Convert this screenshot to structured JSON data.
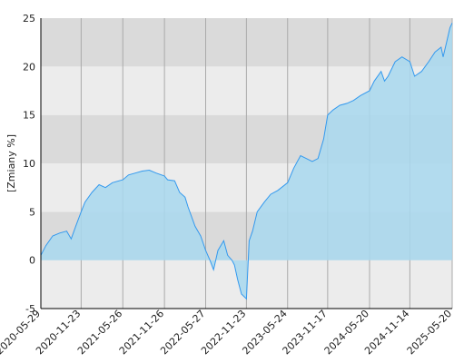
{
  "chart_data": {
    "type": "area",
    "title": "",
    "xlabel": "",
    "ylabel": "[Zmiany %]",
    "ylim": [
      -5,
      25
    ],
    "yticks": [
      -5,
      0,
      5,
      10,
      15,
      20,
      25
    ],
    "xlim": [
      "2020-05-29",
      "2025-05-20"
    ],
    "xticks": [
      "2020-05-29",
      "2020-11-23",
      "2021-05-26",
      "2021-11-26",
      "2022-05-27",
      "2022-11-23",
      "2023-05-24",
      "2023-11-17",
      "2024-05-20",
      "2024-11-14",
      "2025-05-20"
    ],
    "grid": true,
    "legend": "none",
    "colors": {
      "line": "#3399ee",
      "fill": "#a8d8ee",
      "band_dark": "#dadada",
      "band_light": "#ececec",
      "grid": "#aaaaaa",
      "axis": "#000000"
    },
    "series": [
      {
        "x": [
          "2020-05-29",
          "2020-06-20",
          "2020-07-20",
          "2020-08-20",
          "2020-09-20",
          "2020-10-10",
          "2020-10-30",
          "2020-11-23",
          "2020-12-10",
          "2021-01-10",
          "2021-02-10",
          "2021-03-10",
          "2021-04-10",
          "2021-05-26",
          "2021-06-20",
          "2021-07-20",
          "2021-08-20",
          "2021-09-20",
          "2021-10-20",
          "2021-11-26",
          "2021-12-10",
          "2022-01-10",
          "2022-02-01",
          "2022-02-25",
          "2022-03-10",
          "2022-04-10",
          "2022-05-05",
          "2022-05-27",
          "2022-06-15",
          "2022-07-01",
          "2022-07-20",
          "2022-08-15",
          "2022-09-01",
          "2022-09-20",
          "2022-10-01",
          "2022-10-15",
          "2022-11-01",
          "2022-11-23",
          "2022-12-05",
          "2022-12-20",
          "2023-01-10",
          "2023-02-10",
          "2023-03-10",
          "2023-04-10",
          "2023-05-24",
          "2023-06-20",
          "2023-07-20",
          "2023-08-15",
          "2023-09-10",
          "2023-10-05",
          "2023-10-30",
          "2023-11-17",
          "2023-12-10",
          "2024-01-10",
          "2024-02-10",
          "2024-03-10",
          "2024-04-10",
          "2024-05-20",
          "2024-06-10",
          "2024-07-10",
          "2024-07-25",
          "2024-08-10",
          "2024-09-10",
          "2024-10-10",
          "2024-11-14",
          "2024-12-05",
          "2025-01-05",
          "2025-02-05",
          "2025-03-05",
          "2025-04-01",
          "2025-04-10",
          "2025-04-25",
          "2025-05-10",
          "2025-05-20"
        ],
        "y": [
          0.5,
          1.5,
          2.5,
          2.8,
          3.0,
          2.2,
          3.5,
          5.0,
          6.0,
          7.0,
          7.8,
          7.5,
          8.0,
          8.3,
          8.8,
          9.0,
          9.2,
          9.3,
          9.0,
          8.7,
          8.3,
          8.2,
          7.0,
          6.5,
          5.5,
          3.5,
          2.5,
          1.0,
          0.0,
          -1.0,
          1.0,
          2.0,
          0.5,
          0.0,
          -0.5,
          -2.0,
          -3.5,
          -4.0,
          2.0,
          3.0,
          5.0,
          6.0,
          6.8,
          7.2,
          8.0,
          9.5,
          10.8,
          10.5,
          10.2,
          10.5,
          12.5,
          15.0,
          15.5,
          16.0,
          16.2,
          16.5,
          17.0,
          17.5,
          18.5,
          19.5,
          18.5,
          19.0,
          20.5,
          21.0,
          20.5,
          19.0,
          19.5,
          20.5,
          21.5,
          22.0,
          21.0,
          22.5,
          24.0,
          24.5
        ]
      }
    ]
  }
}
